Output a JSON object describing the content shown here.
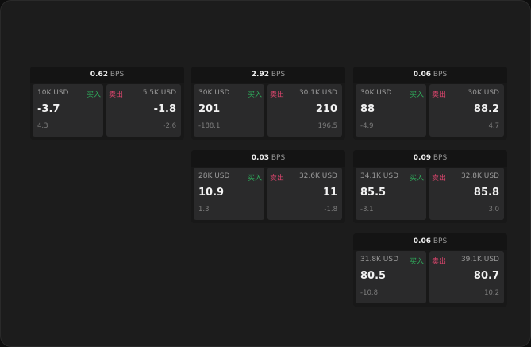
{
  "unit": "BPS",
  "buy_label": "买入",
  "sell_label": "卖出",
  "colors": {
    "buy": "#2fa85a",
    "sell": "#d9456c",
    "background": "#1c1c1c",
    "card": "#2a2a2b"
  },
  "widgets": [
    {
      "spread": "0.62",
      "buy": {
        "size": "10K USD",
        "price": "-3.7",
        "change": "4.3"
      },
      "sell": {
        "size": "5.5K USD",
        "price": "-1.8",
        "change": "-2.6"
      }
    },
    {
      "spread": "2.92",
      "buy": {
        "size": "30K USD",
        "price": "201",
        "change": "-188.1"
      },
      "sell": {
        "size": "30.1K USD",
        "price": "210",
        "change": "196.5"
      }
    },
    {
      "spread": "0.06",
      "buy": {
        "size": "30K USD",
        "price": "88",
        "change": "-4.9"
      },
      "sell": {
        "size": "30K USD",
        "price": "88.2",
        "change": "4.7"
      }
    },
    {
      "spread": "0.03",
      "buy": {
        "size": "28K USD",
        "price": "10.9",
        "change": "1.3"
      },
      "sell": {
        "size": "32.6K USD",
        "price": "11",
        "change": "-1.8"
      }
    },
    {
      "spread": "0.09",
      "buy": {
        "size": "34.1K USD",
        "price": "85.5",
        "change": "-3.1"
      },
      "sell": {
        "size": "32.8K USD",
        "price": "85.8",
        "change": "3.0"
      }
    },
    {
      "spread": "0.06",
      "buy": {
        "size": "31.8K USD",
        "price": "80.5",
        "change": "-10.8"
      },
      "sell": {
        "size": "39.1K USD",
        "price": "80.7",
        "change": "10.2"
      }
    }
  ]
}
